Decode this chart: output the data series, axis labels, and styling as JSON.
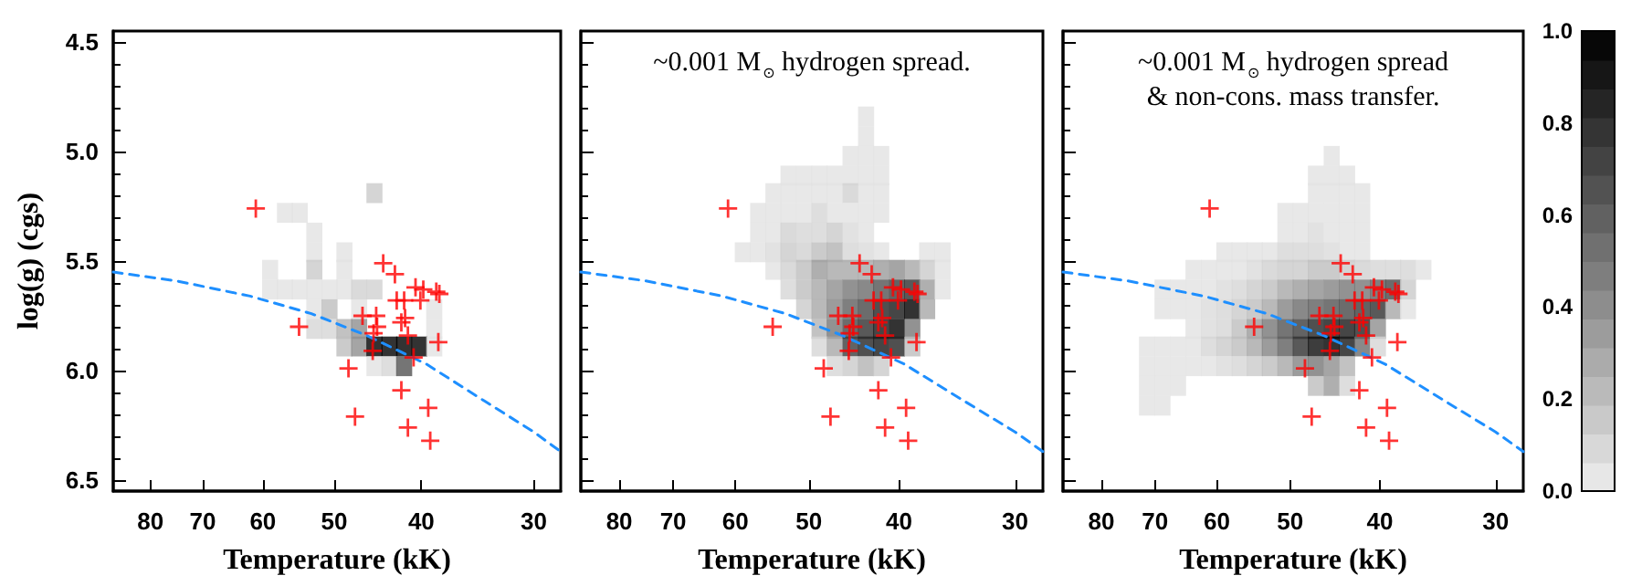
{
  "chart_data": [
    {
      "type": "scatter",
      "xlabel": "Temperature (kK)",
      "ylabel": "log(g) (cgs)",
      "log": "x",
      "xlim": [
        88,
        28
      ],
      "ylim": [
        6.55,
        4.45
      ],
      "xticks": [
        80,
        70,
        60,
        50,
        40,
        30
      ],
      "yticks": [
        4.5,
        {
          "value": 5,
          "label": "5.0"
        },
        5.5,
        {
          "value": 6,
          "label": "6.0"
        },
        6.5
      ],
      "series": [
        {
          "type": "scatter",
          "marker": "square",
          "x": [
            45.1,
            56.7,
            54.6,
            52.6,
            52.6,
            48.7,
            58.9,
            52.6,
            48.7,
            58.9,
            56.7,
            54.6,
            52.6,
            50.6,
            48.7,
            46.9,
            45.1,
            52.6,
            50.6,
            46.9,
            38.7,
            52.6,
            50.6,
            48.7,
            46.9,
            38.7,
            48.7,
            46.9,
            45.1,
            43.4,
            41.8,
            40.2,
            38.7,
            45.1,
            43.4,
            41.8
          ],
          "values": [
            5.19,
            5.28,
            5.28,
            5.37,
            5.46,
            5.46,
            5.54,
            5.54,
            5.54,
            5.63,
            5.63,
            5.63,
            5.63,
            5.63,
            5.63,
            5.63,
            5.63,
            5.72,
            5.72,
            5.72,
            5.72,
            5.81,
            5.81,
            5.81,
            5.81,
            5.81,
            5.89,
            5.89,
            5.89,
            5.89,
            5.89,
            5.89,
            5.89,
            5.98,
            5.98,
            5.98
          ],
          "colors": [
            "#cacaca",
            "#e2e2e2",
            "#e2e2e2",
            "#e2e2e2",
            "#e2e2e2",
            "#e2e2e2",
            "#e2e2e2",
            "#cacaca",
            "#e2e2e2",
            "#e2e2e2",
            "#e2e2e2",
            "#e2e2e2",
            "#e2e2e2",
            "#e2e2e2",
            "#e2e2e2",
            "#d1d1d1",
            "#d1d1d1",
            "#e2e2e2",
            "#bebebe",
            "#e2e2e2",
            "#e2e2e2",
            "#d6d6d6",
            "#d6d6d6",
            "#b3b3b3",
            "#8f8f8f",
            "#e2e2e2",
            "#bebebe",
            "#8f8f8f",
            "#000000",
            "#000000",
            "#000000",
            "#000000",
            "#e2e2e2",
            "#e2e2e2",
            "#d6d6d6",
            "#535353"
          ]
        },
        {
          "type": "scatter",
          "color": "#ff0000",
          "marker": "cross",
          "x": [
            61.1,
            54.7,
            48.2,
            47.4,
            44.1,
            42.8,
            46.5,
            44.9,
            44.8,
            45.2,
            45.3,
            42.6,
            41.8,
            40.6,
            39.8,
            40.1,
            38.5,
            38.2,
            41.7,
            42.1,
            41.4,
            40.8,
            38.3,
            42.1,
            39.3,
            41.4,
            39.1
          ],
          "values": [
            5.26,
            5.8,
            5.99,
            6.21,
            5.51,
            5.56,
            5.75,
            5.75,
            5.8,
            5.83,
            5.91,
            5.68,
            5.68,
            5.62,
            5.63,
            5.68,
            5.64,
            5.65,
            5.76,
            5.78,
            5.84,
            5.94,
            5.87,
            6.09,
            6.17,
            6.26,
            6.32
          ]
        },
        {
          "type": "line",
          "color": "#1e8fff",
          "marker": "none",
          "line_style": "dashed",
          "x": [
            88,
            75,
            62,
            53,
            46,
            39.5,
            34,
            30,
            28
          ],
          "values": [
            5.55,
            5.59,
            5.66,
            5.74,
            5.84,
            5.97,
            6.14,
            6.28,
            6.37
          ]
        }
      ]
    },
    {
      "type": "scatter",
      "xlabel": "Temperature (kK)",
      "annotations": [
        "~0.001 M$_{⊙}$ hydrogen spread."
      ],
      "log": "x",
      "tick_labels": "x",
      "xlim": [
        88,
        28
      ],
      "ylim": [
        6.55,
        4.45
      ],
      "xticks": [
        80,
        70,
        60,
        50,
        40,
        30
      ],
      "yticks": [
        4.5,
        5,
        5.5,
        6,
        6.5
      ],
      "series": [
        {
          "type": "scatter",
          "marker": "square",
          "x": [
            43.4,
            43.4,
            45.1,
            43.4,
            41.8,
            52.6,
            50.6,
            48.7,
            46.9,
            45.1,
            43.4,
            41.8,
            54.6,
            52.6,
            50.6,
            48.7,
            46.9,
            45.1,
            43.4,
            41.8,
            56.7,
            54.6,
            52.6,
            50.6,
            48.7,
            46.9,
            45.1,
            43.4,
            41.8,
            56.7,
            54.6,
            52.6,
            50.6,
            48.7,
            46.9,
            45.1,
            43.4,
            58.9,
            56.7,
            54.6,
            52.6,
            50.6,
            48.7,
            46.9,
            45.1,
            43.4,
            41.8,
            37.3,
            35.9,
            54.6,
            52.6,
            50.6,
            48.7,
            46.9,
            45.1,
            43.4,
            41.8,
            40.2,
            38.7,
            37.3,
            35.9,
            52.6,
            50.6,
            48.7,
            46.9,
            45.1,
            43.4,
            41.8,
            40.2,
            38.7,
            37.3,
            35.9,
            50.6,
            48.7,
            46.9,
            45.1,
            43.4,
            41.8,
            40.2,
            38.7,
            37.3,
            48.7,
            46.9,
            45.1,
            43.4,
            41.8,
            40.2,
            38.7,
            48.7,
            46.9,
            45.1,
            43.4,
            41.8,
            40.2,
            38.7,
            46.9,
            45.1,
            43.4,
            41.8
          ],
          "values": [
            4.84,
            4.93,
            5.02,
            5.02,
            5.02,
            5.11,
            5.11,
            5.11,
            5.11,
            5.11,
            5.11,
            5.11,
            5.19,
            5.19,
            5.19,
            5.19,
            5.19,
            5.19,
            5.19,
            5.19,
            5.28,
            5.28,
            5.28,
            5.28,
            5.28,
            5.28,
            5.28,
            5.28,
            5.28,
            5.37,
            5.37,
            5.37,
            5.37,
            5.37,
            5.37,
            5.37,
            5.37,
            5.46,
            5.46,
            5.46,
            5.46,
            5.46,
            5.46,
            5.46,
            5.46,
            5.46,
            5.46,
            5.46,
            5.46,
            5.54,
            5.54,
            5.54,
            5.54,
            5.54,
            5.54,
            5.54,
            5.54,
            5.54,
            5.54,
            5.54,
            5.54,
            5.63,
            5.63,
            5.63,
            5.63,
            5.63,
            5.63,
            5.63,
            5.63,
            5.63,
            5.63,
            5.63,
            5.72,
            5.72,
            5.72,
            5.72,
            5.72,
            5.72,
            5.72,
            5.72,
            5.72,
            5.81,
            5.81,
            5.81,
            5.81,
            5.81,
            5.81,
            5.81,
            5.89,
            5.89,
            5.89,
            5.89,
            5.89,
            5.89,
            5.89,
            5.98,
            5.98,
            5.98,
            5.98
          ],
          "colors": [
            "#e2e2e2",
            "#e2e2e2",
            "#e2e2e2",
            "#e2e2e2",
            "#e2e2e2",
            "#e2e2e2",
            "#e2e2e2",
            "#e2e2e2",
            "#e2e2e2",
            "#e2e2e2",
            "#e2e2e2",
            "#e2e2e2",
            "#e2e2e2",
            "#e2e2e2",
            "#e2e2e2",
            "#e2e2e2",
            "#e2e2e2",
            "#d1d1d1",
            "#e2e2e2",
            "#e2e2e2",
            "#e2e2e2",
            "#e2e2e2",
            "#e2e2e2",
            "#e2e2e2",
            "#d6d6d6",
            "#e2e2e2",
            "#e2e2e2",
            "#e2e2e2",
            "#e2e2e2",
            "#e2e2e2",
            "#e2e2e2",
            "#d1d1d1",
            "#d6d6d6",
            "#d6d6d6",
            "#cacaca",
            "#dbdbdb",
            "#e2e2e2",
            "#e2e2e2",
            "#e2e2e2",
            "#dbdbdb",
            "#cacaca",
            "#d1d1d1",
            "#bebebe",
            "#b3b3b3",
            "#d6d6d6",
            "#dbdbdb",
            "#e2e2e2",
            "#e2e2e2",
            "#e2e2e2",
            "#e2e2e2",
            "#d1d1d1",
            "#bebebe",
            "#9b9b9b",
            "#a7a7a7",
            "#a7a7a7",
            "#a7a7a7",
            "#9b9b9b",
            "#8f8f8f",
            "#a7a7a7",
            "#cacaca",
            "#e2e2e2",
            "#d6d6d6",
            "#bebebe",
            "#a7a7a7",
            "#8f8f8f",
            "#777777",
            "#6b6b6b",
            "#535353",
            "#3c3c3c",
            "#303030",
            "#9b9b9b",
            "#e2e2e2",
            "#cacaca",
            "#a7a7a7",
            "#838383",
            "#5f5f5f",
            "#474747",
            "#242424",
            "#181818",
            "#000000",
            "#a7a7a7",
            "#b3b3b3",
            "#777777",
            "#474747",
            "#303030",
            "#181818",
            "#000000",
            "#777777",
            "#d6d6d6",
            "#a7a7a7",
            "#3c3c3c",
            "#242424",
            "#181818",
            "#242424",
            "#bebebe",
            "#d6d6d6",
            "#cacaca",
            "#b3b3b3",
            "#cacaca"
          ]
        },
        {
          "type": "scatter",
          "color": "#ff0000",
          "marker": "cross",
          "x": [
            61.1,
            54.7,
            48.2,
            47.4,
            44.1,
            42.8,
            46.5,
            44.9,
            44.8,
            45.2,
            45.3,
            42.6,
            41.8,
            40.6,
            39.8,
            40.1,
            38.5,
            38.2,
            41.7,
            42.1,
            41.4,
            40.8,
            38.3,
            42.1,
            39.3,
            41.4,
            39.1
          ],
          "values": [
            5.26,
            5.8,
            5.99,
            6.21,
            5.51,
            5.56,
            5.75,
            5.75,
            5.8,
            5.83,
            5.91,
            5.68,
            5.68,
            5.62,
            5.63,
            5.68,
            5.64,
            5.65,
            5.76,
            5.78,
            5.84,
            5.94,
            5.87,
            6.09,
            6.17,
            6.26,
            6.32
          ]
        },
        {
          "type": "line",
          "color": "#1e8fff",
          "marker": "none",
          "line_style": "dashed",
          "x": [
            88,
            75,
            62,
            53,
            46,
            39.5,
            34,
            30,
            28
          ],
          "values": [
            5.55,
            5.59,
            5.66,
            5.74,
            5.84,
            5.97,
            6.14,
            6.28,
            6.37
          ]
        }
      ]
    },
    {
      "type": "scatter",
      "xlabel": "Temperature (kK)",
      "annotations": [
        "~0.001 M$_{⊙}$ hydrogen spread\n& non-cons. mass transfer."
      ],
      "log": "x",
      "tick_labels": "x",
      "xlim": [
        88,
        28
      ],
      "ylim": [
        6.55,
        4.45
      ],
      "xticks": [
        80,
        70,
        60,
        50,
        40,
        30
      ],
      "yticks": [
        4.5,
        5,
        5.5,
        6,
        6.5
      ],
      "clim": [
        0,
        1
      ],
      "cticks": [
        {
          "value": 0,
          "label": "0.0"
        },
        0.2,
        0.4,
        0.6,
        0.8,
        {
          "value": 1,
          "label": "1.0"
        }
      ],
      "series": [
        {
          "type": "scatter",
          "marker": "square",
          "x": [
            45.1,
            46.9,
            45.1,
            43.4,
            46.9,
            45.1,
            43.4,
            41.8,
            50.6,
            48.7,
            46.9,
            45.1,
            43.4,
            41.8,
            50.6,
            48.7,
            46.9,
            45.1,
            43.4,
            41.8,
            58.9,
            56.7,
            54.6,
            52.6,
            50.6,
            48.7,
            46.9,
            45.1,
            43.4,
            41.8,
            63.6,
            61.2,
            58.9,
            56.7,
            54.6,
            52.6,
            50.6,
            48.7,
            46.9,
            45.1,
            43.4,
            41.8,
            40.2,
            38.7,
            37.3,
            35.9,
            68.7,
            66.1,
            63.6,
            61.2,
            58.9,
            56.7,
            54.6,
            52.6,
            50.6,
            48.7,
            46.9,
            45.1,
            43.4,
            41.8,
            40.2,
            38.7,
            37.3,
            68.7,
            66.1,
            63.6,
            61.2,
            58.9,
            56.7,
            54.6,
            52.6,
            50.6,
            48.7,
            46.9,
            45.1,
            43.4,
            41.8,
            40.2,
            38.7,
            37.3,
            63.6,
            61.2,
            58.9,
            56.7,
            54.6,
            52.6,
            50.6,
            48.7,
            46.9,
            45.1,
            43.4,
            41.8,
            40.2,
            71.4,
            68.7,
            66.1,
            63.6,
            61.2,
            58.9,
            56.7,
            54.6,
            52.6,
            50.6,
            48.7,
            46.9,
            45.1,
            43.4,
            41.8,
            40.2,
            71.4,
            68.7,
            66.1,
            63.6,
            61.2,
            58.9,
            56.7,
            54.6,
            52.6,
            50.6,
            48.7,
            46.9,
            45.1,
            43.4,
            71.4,
            68.7,
            66.1,
            46.9,
            45.1,
            43.4,
            71.4,
            68.7
          ],
          "values": [
            5.02,
            5.11,
            5.11,
            5.11,
            5.19,
            5.19,
            5.19,
            5.19,
            5.28,
            5.28,
            5.28,
            5.28,
            5.28,
            5.28,
            5.37,
            5.37,
            5.37,
            5.37,
            5.37,
            5.37,
            5.46,
            5.46,
            5.46,
            5.46,
            5.46,
            5.46,
            5.46,
            5.46,
            5.46,
            5.46,
            5.54,
            5.54,
            5.54,
            5.54,
            5.54,
            5.54,
            5.54,
            5.54,
            5.54,
            5.54,
            5.54,
            5.54,
            5.54,
            5.54,
            5.54,
            5.54,
            5.63,
            5.63,
            5.63,
            5.63,
            5.63,
            5.63,
            5.63,
            5.63,
            5.63,
            5.63,
            5.63,
            5.63,
            5.63,
            5.63,
            5.63,
            5.63,
            5.63,
            5.72,
            5.72,
            5.72,
            5.72,
            5.72,
            5.72,
            5.72,
            5.72,
            5.72,
            5.72,
            5.72,
            5.72,
            5.72,
            5.72,
            5.72,
            5.72,
            5.72,
            5.81,
            5.81,
            5.81,
            5.81,
            5.81,
            5.81,
            5.81,
            5.81,
            5.81,
            5.81,
            5.81,
            5.81,
            5.81,
            5.89,
            5.89,
            5.89,
            5.89,
            5.89,
            5.89,
            5.89,
            5.89,
            5.89,
            5.89,
            5.89,
            5.89,
            5.89,
            5.89,
            5.89,
            5.89,
            5.98,
            5.98,
            5.98,
            5.98,
            5.98,
            5.98,
            5.98,
            5.98,
            5.98,
            5.98,
            5.98,
            5.98,
            5.98,
            5.98,
            6.07,
            6.07,
            6.07,
            6.07,
            6.07,
            6.07,
            6.16,
            6.16
          ],
          "colors": [
            "#e2e2e2",
            "#e2e2e2",
            "#e2e2e2",
            "#e2e2e2",
            "#e2e2e2",
            "#e2e2e2",
            "#e2e2e2",
            "#e2e2e2",
            "#e2e2e2",
            "#e2e2e2",
            "#e2e2e2",
            "#e2e2e2",
            "#e2e2e2",
            "#e2e2e2",
            "#e2e2e2",
            "#e2e2e2",
            "#dbdbdb",
            "#e2e2e2",
            "#e2e2e2",
            "#e2e2e2",
            "#e2e2e2",
            "#e2e2e2",
            "#e2e2e2",
            "#e2e2e2",
            "#d6d6d6",
            "#d6d6d6",
            "#d6d6d6",
            "#dbdbdb",
            "#e2e2e2",
            "#e2e2e2",
            "#e2e2e2",
            "#e2e2e2",
            "#e2e2e2",
            "#e2e2e2",
            "#dbdbdb",
            "#d1d1d1",
            "#cacaca",
            "#cacaca",
            "#bebebe",
            "#bebebe",
            "#cacaca",
            "#d1d1d1",
            "#d6d6d6",
            "#d6d6d6",
            "#d6d6d6",
            "#e2e2e2",
            "#e2e2e2",
            "#e2e2e2",
            "#e2e2e2",
            "#e2e2e2",
            "#dbdbdb",
            "#d6d6d6",
            "#cacaca",
            "#bebebe",
            "#a7a7a7",
            "#9b9b9b",
            "#8f8f8f",
            "#838383",
            "#777777",
            "#777777",
            "#5f5f5f",
            "#474747",
            "#cacaca",
            "#e2e2e2",
            "#e2e2e2",
            "#e2e2e2",
            "#dbdbdb",
            "#d6d6d6",
            "#cacaca",
            "#bebebe",
            "#a7a7a7",
            "#838383",
            "#6b6b6b",
            "#5f5f5f",
            "#535353",
            "#474747",
            "#3c3c3c",
            "#303030",
            "#a7a7a7",
            "#e2e2e2",
            "#e2e2e2",
            "#dbdbdb",
            "#d6d6d6",
            "#bebebe",
            "#9b9b9b",
            "#777777",
            "#535353",
            "#3c3c3c",
            "#242424",
            "#181818",
            "#181818",
            "#242424",
            "#8f8f8f",
            "#e2e2e2",
            "#e2e2e2",
            "#e2e2e2",
            "#e2e2e2",
            "#d6d6d6",
            "#cacaca",
            "#bebebe",
            "#a7a7a7",
            "#838383",
            "#5f5f5f",
            "#303030",
            "#0c0c0c",
            "#000000",
            "#181818",
            "#6b6b6b",
            "#d6d6d6",
            "#e2e2e2",
            "#e2e2e2",
            "#e2e2e2",
            "#e2e2e2",
            "#e2e2e2",
            "#dbdbdb",
            "#d6d6d6",
            "#cacaca",
            "#bebebe",
            "#a7a7a7",
            "#838383",
            "#777777",
            "#8f8f8f",
            "#b3b3b3",
            "#e2e2e2",
            "#e2e2e2",
            "#e2e2e2",
            "#bebebe",
            "#9b9b9b",
            "#d6d6d6",
            "#e2e2e2",
            "#e2e2e2"
          ]
        },
        {
          "type": "scatter",
          "color": "#ff0000",
          "marker": "cross",
          "x": [
            61.1,
            54.7,
            48.2,
            47.4,
            44.1,
            42.8,
            46.5,
            44.9,
            44.8,
            45.2,
            45.3,
            42.6,
            41.8,
            40.6,
            39.8,
            40.1,
            38.5,
            38.2,
            41.7,
            42.1,
            41.4,
            40.8,
            38.3,
            42.1,
            39.3,
            41.4,
            39.1
          ],
          "values": [
            5.26,
            5.8,
            5.99,
            6.21,
            5.51,
            5.56,
            5.75,
            5.75,
            5.8,
            5.83,
            5.91,
            5.68,
            5.68,
            5.62,
            5.63,
            5.68,
            5.64,
            5.65,
            5.76,
            5.78,
            5.84,
            5.94,
            5.87,
            6.09,
            6.17,
            6.26,
            6.32
          ]
        },
        {
          "type": "line",
          "color": "#1e8fff",
          "marker": "none",
          "line_style": "dashed",
          "x": [
            88,
            75,
            62,
            53,
            46,
            39.5,
            34,
            30,
            28
          ],
          "values": [
            5.55,
            5.59,
            5.66,
            5.74,
            5.84,
            5.97,
            6.14,
            6.28,
            6.37
          ]
        }
      ]
    }
  ]
}
